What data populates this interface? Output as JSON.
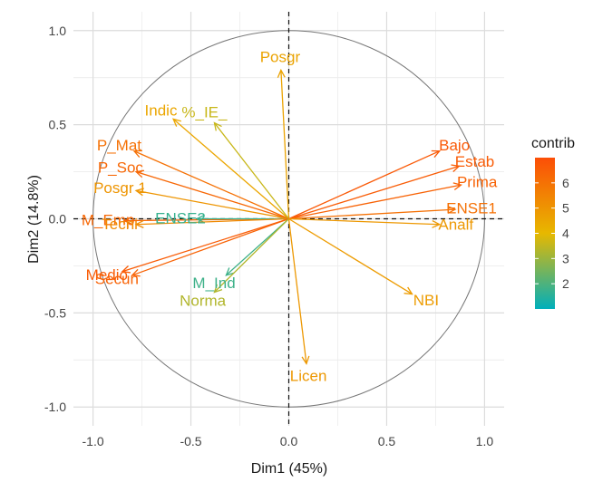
{
  "chart_data": {
    "type": "scatter",
    "subtype": "pca-variable-correlation-circle",
    "xlabel": "Dim1 (45%)",
    "ylabel": "Dim2 (14.8%)",
    "xlim": [
      -1.1,
      1.1
    ],
    "ylim": [
      -1.1,
      1.1
    ],
    "x_ticks": [
      -1.0,
      -0.5,
      0.0,
      0.5,
      1.0
    ],
    "y_ticks": [
      -1.0,
      -0.5,
      0.0,
      0.5,
      1.0
    ],
    "x_tick_labels": [
      "-1.0",
      "-0.5",
      "0.0",
      "0.5",
      "1.0"
    ],
    "y_tick_labels": [
      "-1.0",
      "-0.5",
      "0.0",
      "0.5",
      "1.0"
    ],
    "grid": true,
    "unit_circle": true,
    "legend": {
      "title": "contrib",
      "position": "right",
      "min": 1,
      "max": 7,
      "ticks": [
        2,
        3,
        4,
        5,
        6
      ],
      "tick_labels": [
        "2",
        "3",
        "4",
        "5",
        "6"
      ],
      "colors": [
        "#00AFBB",
        "#E7B800",
        "#FC4E07"
      ]
    },
    "variables": [
      {
        "name": "Posgr",
        "x": -0.04,
        "y": 0.79,
        "contrib": 4.6
      },
      {
        "name": "Indic",
        "x": -0.59,
        "y": 0.53,
        "contrib": 4.5
      },
      {
        "name": "P_Mat",
        "x": -0.79,
        "y": 0.36,
        "contrib": 6.0
      },
      {
        "name": "%_IE_",
        "x": -0.38,
        "y": 0.51,
        "contrib": 3.6
      },
      {
        "name": "P_Soc",
        "x": -0.78,
        "y": 0.25,
        "contrib": 6.3
      },
      {
        "name": "Posgr 1",
        "x": -0.78,
        "y": 0.15,
        "contrib": 5.0
      },
      {
        "name": "M_Emp",
        "x": -0.84,
        "y": -0.01,
        "contrib": 6.3
      },
      {
        "name": "ENSE2",
        "x": -0.47,
        "y": 0.0,
        "contrib": 1.7
      },
      {
        "name": "Tecni",
        "x": -0.78,
        "y": -0.03,
        "contrib": 5.3
      },
      {
        "name": "Medio",
        "x": -0.85,
        "y": -0.28,
        "contrib": 6.6
      },
      {
        "name": "Secun",
        "x": -0.8,
        "y": -0.3,
        "contrib": 6.4
      },
      {
        "name": "M_Ind",
        "x": -0.32,
        "y": -0.3,
        "contrib": 1.8
      },
      {
        "name": "Norma",
        "x": -0.38,
        "y": -0.39,
        "contrib": 3.3
      },
      {
        "name": "Bajo",
        "x": 0.77,
        "y": 0.36,
        "contrib": 6.7
      },
      {
        "name": "Estab",
        "x": 0.87,
        "y": 0.28,
        "contrib": 6.6
      },
      {
        "name": "Prima",
        "x": 0.88,
        "y": 0.18,
        "contrib": 6.4
      },
      {
        "name": "ENSE1",
        "x": 0.85,
        "y": 0.05,
        "contrib": 6.0
      },
      {
        "name": "Analf",
        "x": 0.77,
        "y": -0.03,
        "contrib": 4.9
      },
      {
        "name": "NBI",
        "x": 0.63,
        "y": -0.4,
        "contrib": 4.8
      },
      {
        "name": "Licen",
        "x": 0.09,
        "y": -0.77,
        "contrib": 4.9
      }
    ]
  }
}
